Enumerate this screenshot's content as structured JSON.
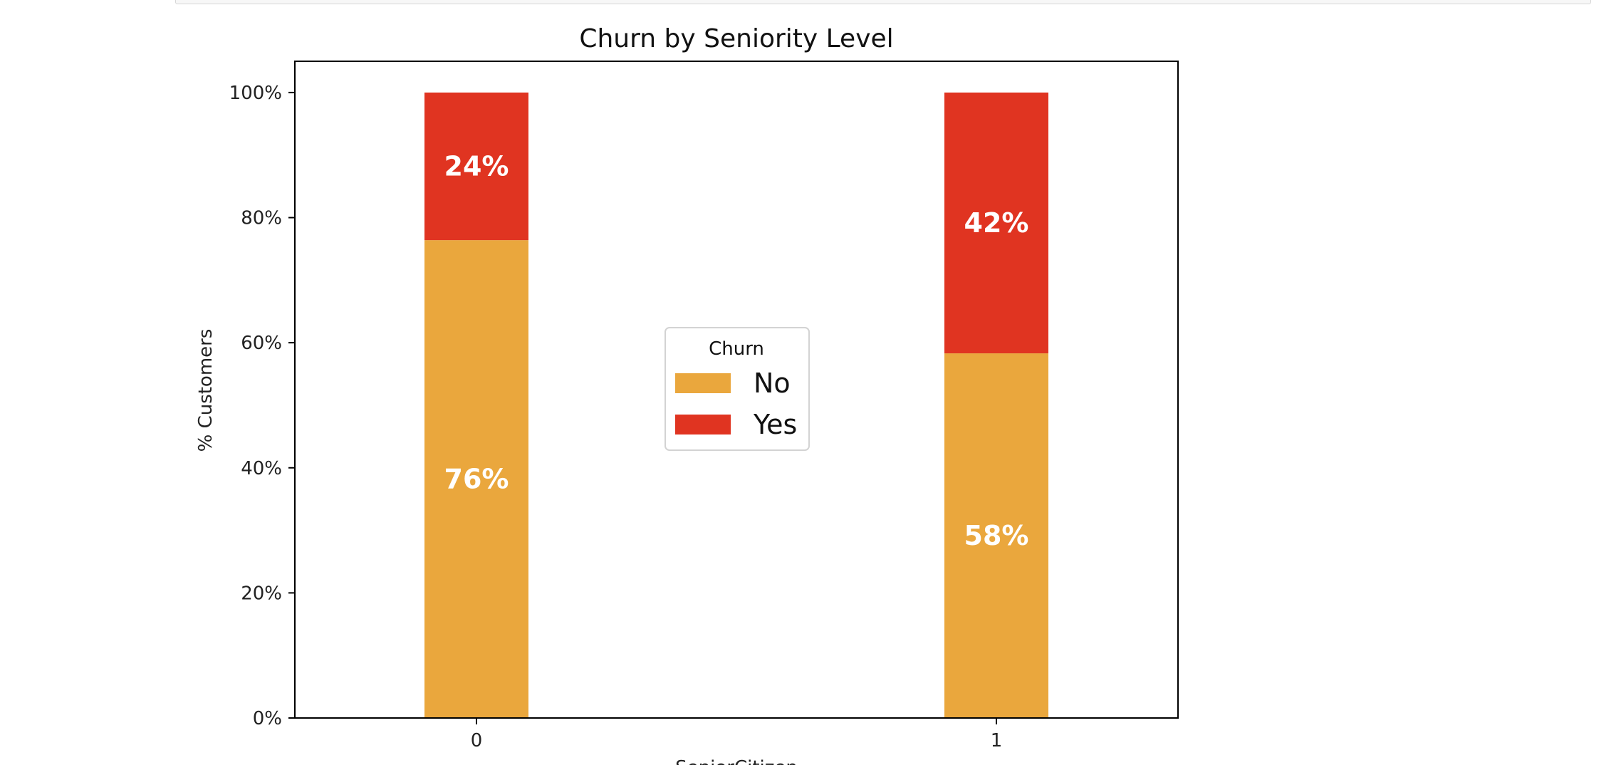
{
  "chart_data": {
    "type": "bar",
    "stacked": true,
    "title": "Churn by Seniority Level",
    "xlabel": "SeniorCitizen",
    "ylabel": "% Customers",
    "categories": [
      "0",
      "1"
    ],
    "series": [
      {
        "name": "No",
        "values": [
          76.4,
          58.3
        ],
        "labels": [
          "76%",
          "58%"
        ],
        "color": "#eaa73d"
      },
      {
        "name": "Yes",
        "values": [
          23.6,
          41.7
        ],
        "labels": [
          "24%",
          "42%"
        ],
        "color": "#e03421"
      }
    ],
    "ylim": [
      0,
      105
    ],
    "yticks": [
      0,
      20,
      40,
      60,
      80,
      100
    ],
    "ytick_labels": [
      "0%",
      "20%",
      "40%",
      "60%",
      "80%",
      "100%"
    ],
    "grid": false,
    "legend": {
      "title": "Churn",
      "placement": "center"
    }
  }
}
